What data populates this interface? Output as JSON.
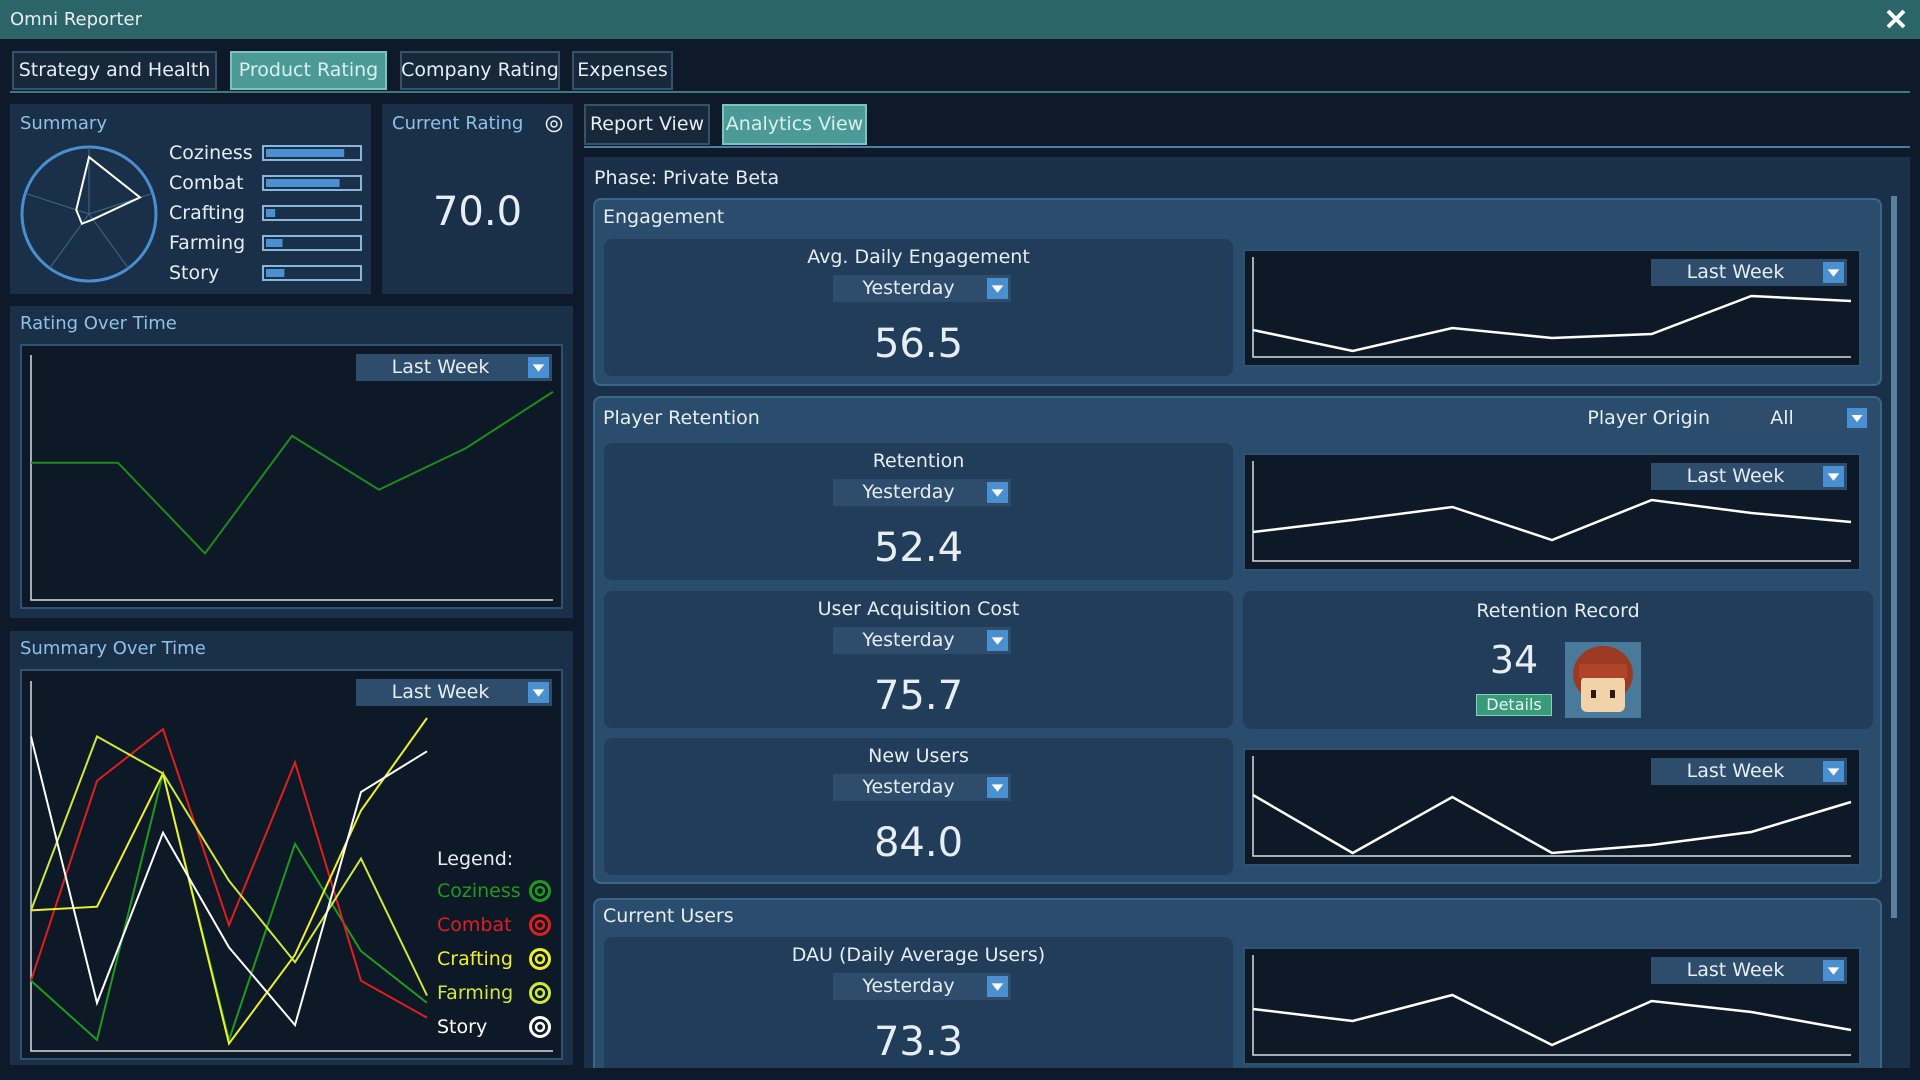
{
  "window": {
    "title": "Omni Reporter"
  },
  "tabs": {
    "items": [
      "Strategy and Health",
      "Product Rating",
      "Company Rating",
      "Expenses"
    ],
    "active": 1
  },
  "summary": {
    "title": "Summary",
    "xlim": [
      0,
      100
    ],
    "items": [
      {
        "label": "Coziness",
        "value": 85
      },
      {
        "label": "Combat",
        "value": 80
      },
      {
        "label": "Crafting",
        "value": 10
      },
      {
        "label": "Farming",
        "value": 18
      },
      {
        "label": "Story",
        "value": 20
      }
    ]
  },
  "current_rating": {
    "title": "Current Rating",
    "value": "70.0"
  },
  "rating_over_time": {
    "title": "Rating Over Time",
    "range": "Last Week",
    "color": "#1e8a1e",
    "ylim": [
      0,
      100
    ],
    "values": [
      56,
      56,
      19,
      67,
      45,
      62,
      85
    ]
  },
  "summary_over_time": {
    "title": "Summary Over Time",
    "range": "Last Week",
    "legend_title": "Legend:",
    "ylim": [
      0,
      100
    ],
    "series": [
      {
        "name": "Coziness",
        "color": "#1f9a1f",
        "values": [
          19,
          3,
          75,
          3,
          56,
          27,
          13
        ]
      },
      {
        "name": "Combat",
        "color": "#e01e1e",
        "values": [
          19,
          73,
          87,
          34,
          78,
          19,
          9
        ]
      },
      {
        "name": "Crafting",
        "color": "#f0f02a",
        "values": [
          38,
          39,
          75,
          2,
          26,
          65,
          90
        ]
      },
      {
        "name": "Farming",
        "color": "#cfe83a",
        "values": [
          38,
          85,
          75,
          46,
          24,
          52,
          15
        ]
      },
      {
        "name": "Story",
        "color": "#ffffff",
        "values": [
          85,
          13,
          59,
          28,
          7,
          70,
          81
        ]
      }
    ]
  },
  "view_tabs": {
    "items": [
      "Report View",
      "Analytics View"
    ],
    "active": 1
  },
  "phase": {
    "label": "Phase:",
    "value": "Private Beta"
  },
  "engagement": {
    "title": "Engagement",
    "metrics": [
      {
        "title": "Avg. Daily Engagement",
        "period": "Yesterday",
        "value": "56.5",
        "range": "Last Week",
        "ylim": [
          0,
          100
        ],
        "trend": [
          27,
          6,
          29,
          19,
          23,
          61,
          56
        ]
      }
    ]
  },
  "player_retention": {
    "title": "Player Retention",
    "filter_label": "Player Origin",
    "filter_value": "All",
    "metrics": [
      {
        "title": "Retention",
        "period": "Yesterday",
        "value": "52.4",
        "range": "Last Week",
        "ylim": [
          0,
          100
        ],
        "trend": [
          29,
          41,
          54,
          21,
          61,
          48,
          39
        ]
      },
      {
        "title": "User Acquisition Cost",
        "period": "Yesterday",
        "value": "75.7"
      },
      {
        "title": "New Users",
        "period": "Yesterday",
        "value": "84.0",
        "range": "Last Week",
        "ylim": [
          0,
          100
        ],
        "trend": [
          61,
          3,
          59,
          3,
          11,
          24,
          54
        ]
      }
    ],
    "record": {
      "title": "Retention Record",
      "value": "34",
      "button": "Details"
    }
  },
  "current_users": {
    "title": "Current Users",
    "metrics": [
      {
        "title": "DAU (Daily Average Users)",
        "period": "Yesterday",
        "value": "73.3",
        "range": "Last Week",
        "ylim": [
          0,
          100
        ],
        "trend": [
          46,
          34,
          60,
          10,
          54,
          43,
          25
        ]
      }
    ]
  }
}
